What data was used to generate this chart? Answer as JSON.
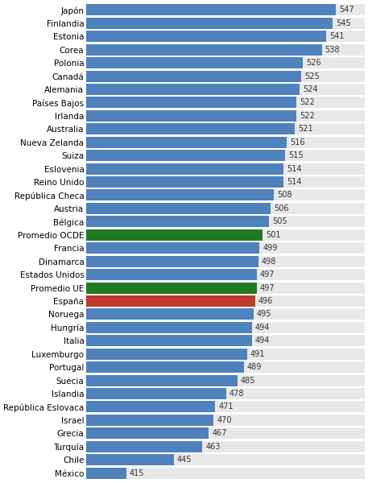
{
  "categories": [
    "México",
    "Chile",
    "Turquía",
    "Grecia",
    "Israel",
    "República Eslovaca",
    "Islandia",
    "Suecia",
    "Portugal",
    "Luxemburgo",
    "Italia",
    "Hungría",
    "Noruega",
    "España",
    "Promedio UE",
    "Estados Unidos",
    "Dinamarca",
    "Francia",
    "Promedio OCDE",
    "Bélgica",
    "Austria",
    "República Checa",
    "Reino Unido",
    "Eslovenia",
    "Suiza",
    "Nueva Zelanda",
    "Australia",
    "Irlanda",
    "Países Bajos",
    "Alemania",
    "Canadá",
    "Polonia",
    "Corea",
    "Estonia",
    "Finlandia",
    "Japón"
  ],
  "values": [
    415,
    445,
    463,
    467,
    470,
    471,
    478,
    485,
    489,
    491,
    494,
    494,
    495,
    496,
    497,
    497,
    498,
    499,
    501,
    505,
    506,
    508,
    514,
    514,
    515,
    516,
    521,
    522,
    522,
    524,
    525,
    526,
    538,
    541,
    545,
    547
  ],
  "colors": [
    "#4f81bd",
    "#4f81bd",
    "#4f81bd",
    "#4f81bd",
    "#4f81bd",
    "#4f81bd",
    "#4f81bd",
    "#4f81bd",
    "#4f81bd",
    "#4f81bd",
    "#4f81bd",
    "#4f81bd",
    "#4f81bd",
    "#c0392b",
    "#217a21",
    "#4f81bd",
    "#4f81bd",
    "#4f81bd",
    "#217a21",
    "#4f81bd",
    "#4f81bd",
    "#4f81bd",
    "#4f81bd",
    "#4f81bd",
    "#4f81bd",
    "#4f81bd",
    "#4f81bd",
    "#4f81bd",
    "#4f81bd",
    "#4f81bd",
    "#4f81bd",
    "#4f81bd",
    "#4f81bd",
    "#4f81bd",
    "#4f81bd",
    "#4f81bd"
  ],
  "bar_label_fontsize": 7,
  "ylabel_fontsize": 7.5,
  "background_color": "#ffffff",
  "bar_bg_color": "#e8e8e8",
  "xlim_min": 390,
  "xlim_max": 565
}
